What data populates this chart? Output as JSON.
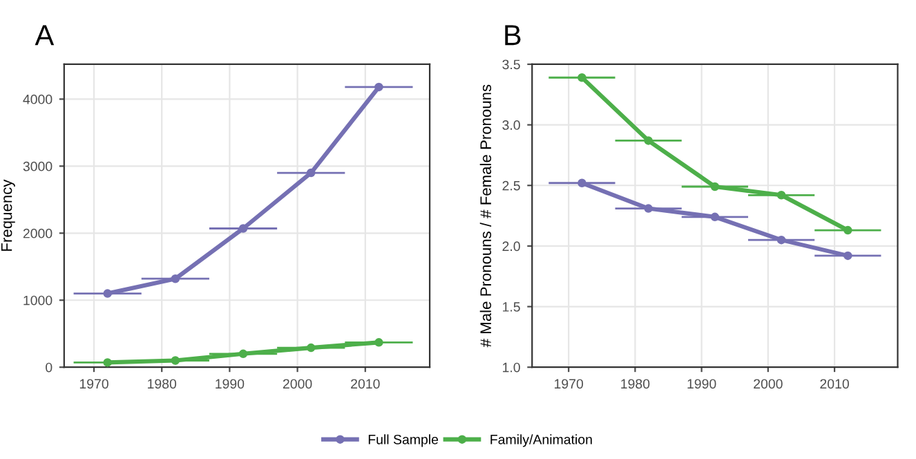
{
  "chart_data": [
    {
      "type": "line",
      "title": "A",
      "ylabel": "Frequency",
      "x": [
        1972,
        1982,
        1992,
        2002,
        2012
      ],
      "xlim": [
        1965.6,
        2019.5
      ],
      "xticks": [
        1970,
        1980,
        1990,
        2000,
        2010
      ],
      "ylim": [
        0,
        4520
      ],
      "yticks": [
        0,
        1000,
        2000,
        3000,
        4000
      ],
      "grid": true,
      "legend": "bottom",
      "marker": "circle",
      "line_style": "solid",
      "series": [
        {
          "name": "Full Sample",
          "color": "#7570b3",
          "values": [
            1100,
            1320,
            2070,
            2900,
            4180
          ],
          "xerrors": [
            5,
            5,
            5,
            5,
            5
          ]
        },
        {
          "name": "Family/Animation",
          "color": "#4daf4a",
          "values": [
            70,
            100,
            200,
            290,
            370
          ],
          "xerrors": [
            5,
            5,
            5,
            5,
            5
          ]
        }
      ]
    },
    {
      "type": "line",
      "title": "B",
      "ylabel": "# Male Pronouns / # Female Pronouns",
      "x": [
        1972,
        1982,
        1992,
        2002,
        2012
      ],
      "xlim": [
        1964.5,
        2019.5
      ],
      "xticks": [
        1970,
        1980,
        1990,
        2000,
        2010
      ],
      "ylim": [
        1.0,
        3.5
      ],
      "yticks": [
        {
          "value": 1,
          "label": "1.0"
        },
        1.5,
        {
          "value": 2,
          "label": "2.0"
        },
        2.5,
        {
          "value": 3,
          "label": "3.0"
        },
        3.5
      ],
      "grid": true,
      "legend": "bottom",
      "marker": "circle",
      "line_style": "solid",
      "series": [
        {
          "name": "Full Sample",
          "color": "#7570b3",
          "values": [
            2.52,
            2.31,
            2.24,
            2.05,
            1.92
          ],
          "xerrors": [
            5,
            5,
            5,
            5,
            5
          ]
        },
        {
          "name": "Family/Animation",
          "color": "#4daf4a",
          "values": [
            3.39,
            2.87,
            2.49,
            2.42,
            2.13
          ],
          "xerrors": [
            5,
            5,
            5,
            5,
            5
          ]
        }
      ]
    }
  ]
}
